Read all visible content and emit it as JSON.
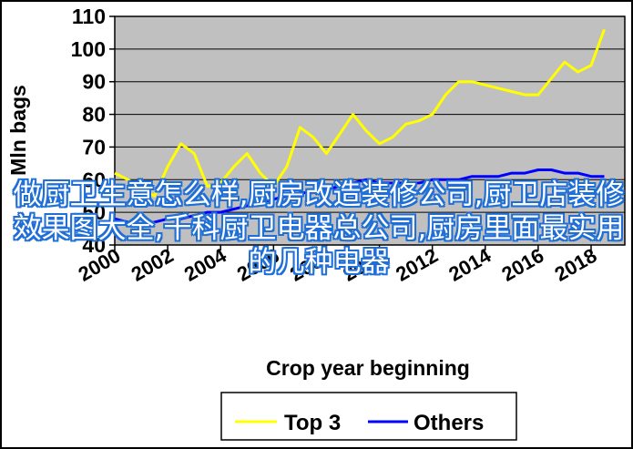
{
  "chart_data": {
    "type": "line",
    "ylabel": "Mln bags",
    "xlabel": "Crop year beginning",
    "ylim": [
      40,
      110
    ],
    "yticks": [
      40,
      50,
      60,
      70,
      80,
      90,
      100,
      110
    ],
    "xlim": [
      2000,
      2018
    ],
    "xticks": [
      2000,
      2002,
      2004,
      2006,
      2008,
      2010,
      2012,
      2014,
      2016,
      2018
    ],
    "grid": "horizontal",
    "background": "#c0c0c0",
    "legend_position": "bottom",
    "series": [
      {
        "name": "Top 3",
        "color": "#ffff00",
        "x": [
          2000,
          2000.5,
          2001,
          2001.5,
          2002,
          2002.5,
          2003,
          2003.5,
          2004,
          2004.5,
          2005,
          2005.5,
          2006,
          2006.5,
          2007,
          2007.5,
          2008,
          2008.5,
          2009,
          2009.5,
          2010,
          2010.5,
          2011,
          2011.5,
          2012,
          2012.5,
          2013,
          2013.5,
          2014,
          2014.5,
          2015,
          2015.5,
          2016,
          2016.5,
          2017,
          2017.5,
          2018,
          2018.5
        ],
        "y": [
          62,
          60,
          57,
          55,
          64,
          71,
          68,
          58,
          59,
          64,
          68,
          62,
          58,
          64,
          76,
          73,
          68,
          74,
          80,
          75,
          71,
          73,
          77,
          78,
          80,
          86,
          90,
          90,
          89,
          88,
          87,
          86,
          86,
          91,
          96,
          93,
          95,
          106
        ]
      },
      {
        "name": "Others",
        "color": "#0000ff",
        "x": [
          2000,
          2000.5,
          2001,
          2001.5,
          2002,
          2002.5,
          2003,
          2003.5,
          2004,
          2004.5,
          2005,
          2005.5,
          2006,
          2006.5,
          2007,
          2007.5,
          2008,
          2008.5,
          2009,
          2009.5,
          2010,
          2010.5,
          2011,
          2011.5,
          2012,
          2012.5,
          2013,
          2013.5,
          2014,
          2014.5,
          2015,
          2015.5,
          2016,
          2016.5,
          2017,
          2017.5,
          2018,
          2018.5
        ],
        "y": [
          48,
          47,
          46,
          47,
          48,
          48,
          49,
          50,
          50,
          51,
          52,
          53,
          54,
          55,
          56,
          56,
          57,
          58,
          59,
          60,
          59,
          59,
          59,
          59,
          60,
          60,
          60,
          61,
          61,
          61,
          62,
          62,
          63,
          63,
          62,
          62,
          61,
          61
        ]
      }
    ]
  },
  "overlay": {
    "text": "做厨卫生意怎么样,厨房改造装修公司,厨卫店装修效果图大全,千科厨卫电器总公司,厨房里面最实用的几种电器",
    "color": "#ffffff",
    "outline_color": "#1f6fd6"
  }
}
